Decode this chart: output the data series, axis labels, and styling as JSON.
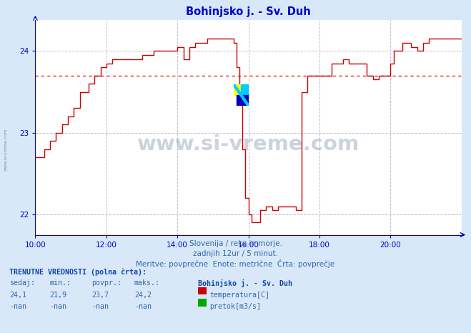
{
  "title": "Bohinjsko j. - Sv. Duh",
  "bg_color": "#d8e8f8",
  "plot_bg_color": "#ffffff",
  "grid_color": "#c0c0d0",
  "axis_color": "#0000cc",
  "x_start": 0,
  "x_end": 144,
  "x_tick_positions": [
    0,
    24,
    48,
    72,
    96,
    120,
    144
  ],
  "x_tick_labels": [
    "10:00",
    "12:00",
    "14:00",
    "16:00",
    "18:00",
    "20:00",
    ""
  ],
  "y_min": 21.75,
  "y_max": 24.38,
  "y_ticks": [
    22,
    23,
    24
  ],
  "avg_line_y": 23.7,
  "avg_line_color": "#dd2222",
  "line_color": "#cc0000",
  "line_width": 1.0,
  "subtitle1": "Slovenija / reke in morje.",
  "subtitle2": "zadnjih 12ur / 5 minut.",
  "subtitle3": "Meritve: povprečne  Enote: metrične  Črta: povprečje",
  "footer_bold": "TRENUTNE VREDNOSTI (polna črta):",
  "footer_headers": [
    "sedaj:",
    "min.:",
    "povpr.:",
    "maks.:"
  ],
  "footer_temp_vals": [
    "24,1",
    "21,9",
    "23,7",
    "24,2"
  ],
  "footer_flow_vals": [
    "-nan",
    "-nan",
    "-nan",
    "-nan"
  ],
  "footer_station": "Bohinjsko j. - Sv. Duh",
  "footer_temp_label": "temperatura[C]",
  "footer_flow_label": "pretok[m3/s]",
  "temp_color": "#cc0000",
  "flow_color": "#00aa00",
  "temperature_data": [
    [
      0,
      22.7
    ],
    [
      2,
      22.7
    ],
    [
      3,
      22.8
    ],
    [
      5,
      22.9
    ],
    [
      7,
      23.0
    ],
    [
      9,
      23.1
    ],
    [
      11,
      23.2
    ],
    [
      13,
      23.3
    ],
    [
      15,
      23.5
    ],
    [
      18,
      23.6
    ],
    [
      20,
      23.7
    ],
    [
      22,
      23.8
    ],
    [
      24,
      23.85
    ],
    [
      26,
      23.9
    ],
    [
      30,
      23.9
    ],
    [
      36,
      23.95
    ],
    [
      40,
      24.0
    ],
    [
      46,
      24.0
    ],
    [
      48,
      24.05
    ],
    [
      50,
      23.9
    ],
    [
      52,
      24.05
    ],
    [
      54,
      24.1
    ],
    [
      58,
      24.15
    ],
    [
      66,
      24.15
    ],
    [
      67,
      24.1
    ],
    [
      68,
      23.8
    ],
    [
      69,
      23.4
    ],
    [
      70,
      22.8
    ],
    [
      71,
      22.2
    ],
    [
      72,
      22.0
    ],
    [
      73,
      21.9
    ],
    [
      75,
      21.9
    ],
    [
      76,
      22.05
    ],
    [
      78,
      22.1
    ],
    [
      80,
      22.05
    ],
    [
      82,
      22.1
    ],
    [
      84,
      22.1
    ],
    [
      86,
      22.1
    ],
    [
      88,
      22.05
    ],
    [
      89,
      22.05
    ],
    [
      90,
      23.5
    ],
    [
      92,
      23.7
    ],
    [
      96,
      23.7
    ],
    [
      100,
      23.85
    ],
    [
      104,
      23.9
    ],
    [
      106,
      23.85
    ],
    [
      110,
      23.85
    ],
    [
      112,
      23.7
    ],
    [
      114,
      23.65
    ],
    [
      116,
      23.7
    ],
    [
      119,
      23.7
    ],
    [
      120,
      23.85
    ],
    [
      121,
      24.0
    ],
    [
      124,
      24.1
    ],
    [
      126,
      24.1
    ],
    [
      127,
      24.05
    ],
    [
      129,
      24.0
    ],
    [
      131,
      24.1
    ],
    [
      133,
      24.15
    ],
    [
      144,
      24.15
    ]
  ]
}
